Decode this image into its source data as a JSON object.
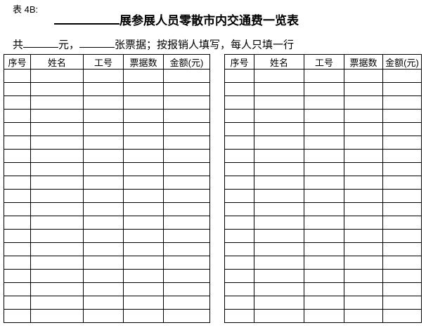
{
  "header": {
    "form_label": "表 4B:",
    "title": "展参展人员零散市内交通费一览表"
  },
  "summary": {
    "total_prefix": "共",
    "amount_unit": "元，",
    "note": "张票据；按报销人填写，每人只填一行"
  },
  "table": {
    "columns": [
      "序号",
      "姓名",
      "工号",
      "票据数",
      "金额(元)"
    ],
    "empty_row_count": 19,
    "instances": 2
  },
  "colors": {
    "background": "#ffffff",
    "text": "#000000",
    "border": "#000000"
  }
}
